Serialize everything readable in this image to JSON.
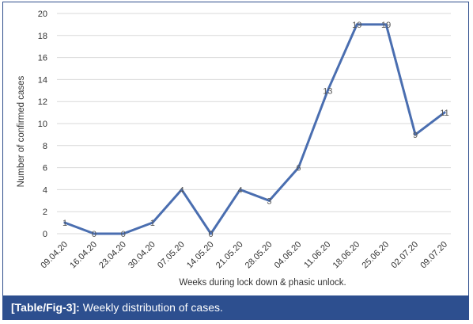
{
  "caption": {
    "label": "[Table/Fig-3]:",
    "text": "Weekly distribution of cases."
  },
  "colors": {
    "line": "#4a6eb0",
    "caption_bg": "#2d4f8f",
    "grid": "#d9d9d9"
  },
  "chart_data": {
    "type": "line",
    "xlabel": "Weeks during lock down & phasic unlock.",
    "ylabel": "Number of confirmed cases",
    "categories": [
      "09.04.20",
      "16.04.20",
      "23.04.20",
      "30.04.20",
      "07.05.20",
      "14.05.20",
      "21.05.20",
      "28.05.20",
      "04.06.20",
      "11.06.20",
      "18.06.20",
      "25.06.20",
      "02.07.20",
      "09.07.20"
    ],
    "series": [
      {
        "values": [
          1,
          0,
          0,
          1,
          4,
          0,
          4,
          3,
          6,
          13,
          19,
          19,
          9,
          11
        ]
      }
    ],
    "ylim": [
      0,
      20
    ],
    "yticks": [
      0,
      2,
      4,
      6,
      8,
      10,
      12,
      14,
      16,
      18,
      20
    ],
    "grid": true,
    "data_labels": true
  }
}
